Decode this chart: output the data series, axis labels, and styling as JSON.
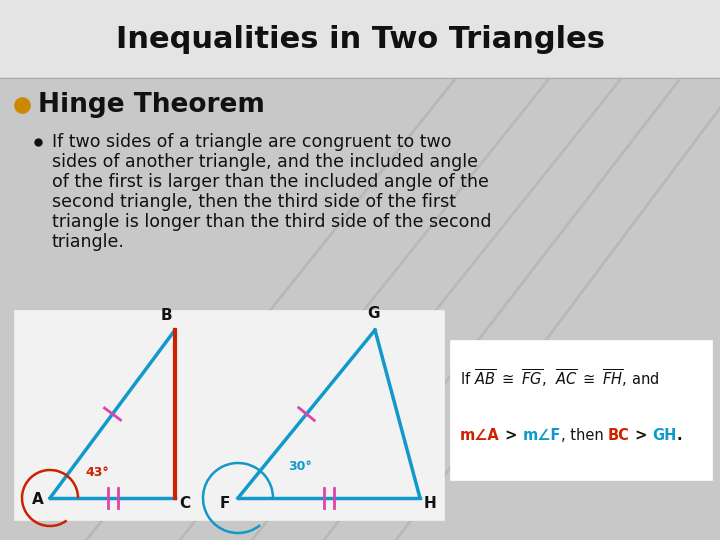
{
  "title": "Inequalities in Two Triangles",
  "title_fontsize": 22,
  "bg_color": "#c8c8c8",
  "title_bg": "#e2e2e2",
  "body_bg": "#d0d0d0",
  "bullet1": "Hinge Theorem",
  "bullet1_fontsize": 19,
  "bullet2_fontsize": 12.5,
  "bullet2_lines": [
    "If two sides of a triangle are congruent to two",
    "sides of another triangle, and the included angle",
    "of the first is larger than the included angle of the",
    "second triangle, then the third side of the first",
    "triangle is longer than the third side of the second",
    "triangle."
  ],
  "diagram_box_color": "#f0f0f0",
  "formula_box_color": "#ffffff",
  "blue": "#1199cc",
  "red": "#cc2200",
  "pink": "#dd44aa",
  "black": "#111111",
  "gold": "#cc8800",
  "diag_lines": [
    [
      0.25,
      1.0,
      0.85,
      0.0
    ],
    [
      0.35,
      1.0,
      0.95,
      0.0
    ],
    [
      0.45,
      1.0,
      1.0,
      0.05
    ],
    [
      0.55,
      1.0,
      1.0,
      0.2
    ],
    [
      0.12,
      1.0,
      0.72,
      0.0
    ]
  ]
}
